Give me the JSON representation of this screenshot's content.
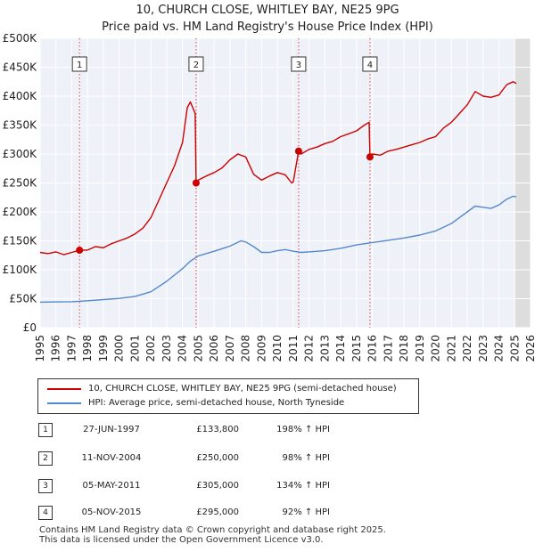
{
  "chart_data": {
    "type": "line",
    "title": "10, CHURCH CLOSE, WHITLEY BAY, NE25 9PG",
    "subtitle": "Price paid vs. HM Land Registry's House Price Index (HPI)",
    "xlim": [
      1995,
      2026
    ],
    "ylim": [
      0,
      500000
    ],
    "x_ticks": [
      1995,
      1996,
      1997,
      1998,
      1999,
      2000,
      2001,
      2002,
      2003,
      2004,
      2005,
      2006,
      2007,
      2008,
      2009,
      2010,
      2011,
      2012,
      2013,
      2014,
      2015,
      2016,
      2017,
      2018,
      2019,
      2020,
      2021,
      2022,
      2023,
      2024,
      2025,
      2026
    ],
    "y_ticks": [
      {
        "value": 0,
        "label": "£0"
      },
      {
        "value": 50000,
        "label": "£50K"
      },
      {
        "value": 100000,
        "label": "£100K"
      },
      {
        "value": 150000,
        "label": "£150K"
      },
      {
        "value": 200000,
        "label": "£200K"
      },
      {
        "value": 250000,
        "label": "£250K"
      },
      {
        "value": 300000,
        "label": "£300K"
      },
      {
        "value": 350000,
        "label": "£350K"
      },
      {
        "value": 400000,
        "label": "£400K"
      },
      {
        "value": 450000,
        "label": "£450K"
      },
      {
        "value": 500000,
        "label": "£500K"
      }
    ],
    "forecast_from": 2025.0,
    "series": [
      {
        "name": "10, CHURCH CLOSE, WHITLEY BAY, NE25 9PG (semi-detached house)",
        "color": "#cc0000",
        "points": [
          [
            1995.0,
            130000
          ],
          [
            1995.5,
            128000
          ],
          [
            1996.0,
            131000
          ],
          [
            1996.5,
            126000
          ],
          [
            1997.0,
            130000
          ],
          [
            1997.49,
            133800
          ],
          [
            1998.0,
            134000
          ],
          [
            1998.5,
            140000
          ],
          [
            1999.0,
            138000
          ],
          [
            1999.5,
            145000
          ],
          [
            2000.0,
            150000
          ],
          [
            2000.5,
            155000
          ],
          [
            2001.0,
            162000
          ],
          [
            2001.5,
            172000
          ],
          [
            2002.0,
            190000
          ],
          [
            2002.5,
            220000
          ],
          [
            2003.0,
            250000
          ],
          [
            2003.5,
            280000
          ],
          [
            2004.0,
            320000
          ],
          [
            2004.3,
            380000
          ],
          [
            2004.5,
            390000
          ],
          [
            2004.8,
            370000
          ],
          [
            2004.86,
            250000
          ],
          [
            2005.0,
            255000
          ],
          [
            2005.5,
            262000
          ],
          [
            2006.0,
            268000
          ],
          [
            2006.5,
            276000
          ],
          [
            2007.0,
            290000
          ],
          [
            2007.5,
            300000
          ],
          [
            2008.0,
            295000
          ],
          [
            2008.5,
            265000
          ],
          [
            2009.0,
            255000
          ],
          [
            2009.5,
            262000
          ],
          [
            2010.0,
            268000
          ],
          [
            2010.5,
            264000
          ],
          [
            2010.9,
            250000
          ],
          [
            2011.0,
            252000
          ],
          [
            2011.34,
            305000
          ],
          [
            2011.5,
            300000
          ],
          [
            2012.0,
            308000
          ],
          [
            2012.5,
            312000
          ],
          [
            2013.0,
            318000
          ],
          [
            2013.5,
            322000
          ],
          [
            2014.0,
            330000
          ],
          [
            2014.5,
            335000
          ],
          [
            2015.0,
            340000
          ],
          [
            2015.5,
            350000
          ],
          [
            2015.8,
            355000
          ],
          [
            2015.85,
            295000
          ],
          [
            2016.0,
            300000
          ],
          [
            2016.5,
            298000
          ],
          [
            2017.0,
            305000
          ],
          [
            2017.5,
            308000
          ],
          [
            2018.0,
            312000
          ],
          [
            2018.5,
            316000
          ],
          [
            2019.0,
            320000
          ],
          [
            2019.5,
            326000
          ],
          [
            2020.0,
            330000
          ],
          [
            2020.5,
            345000
          ],
          [
            2021.0,
            355000
          ],
          [
            2021.5,
            370000
          ],
          [
            2022.0,
            385000
          ],
          [
            2022.5,
            408000
          ],
          [
            2023.0,
            400000
          ],
          [
            2023.5,
            398000
          ],
          [
            2024.0,
            402000
          ],
          [
            2024.5,
            420000
          ],
          [
            2024.9,
            425000
          ],
          [
            2025.1,
            422000
          ]
        ]
      },
      {
        "name": "HPI: Average price, semi-detached house, North Tyneside",
        "color": "#5588cc",
        "points": [
          [
            1995.0,
            44000
          ],
          [
            1996.0,
            44500
          ],
          [
            1997.0,
            44800
          ],
          [
            1998.0,
            46500
          ],
          [
            1999.0,
            48500
          ],
          [
            2000.0,
            50500
          ],
          [
            2001.0,
            54000
          ],
          [
            2002.0,
            62000
          ],
          [
            2003.0,
            80000
          ],
          [
            2004.0,
            102000
          ],
          [
            2004.5,
            115000
          ],
          [
            2005.0,
            124000
          ],
          [
            2006.0,
            132000
          ],
          [
            2007.0,
            141000
          ],
          [
            2007.7,
            150000
          ],
          [
            2008.0,
            148000
          ],
          [
            2008.5,
            140000
          ],
          [
            2009.0,
            130000
          ],
          [
            2009.5,
            130000
          ],
          [
            2010.0,
            133000
          ],
          [
            2010.5,
            135000
          ],
          [
            2011.0,
            132000
          ],
          [
            2011.5,
            130000
          ],
          [
            2012.0,
            131000
          ],
          [
            2013.0,
            133000
          ],
          [
            2014.0,
            137000
          ],
          [
            2015.0,
            143000
          ],
          [
            2016.0,
            147000
          ],
          [
            2017.0,
            151000
          ],
          [
            2018.0,
            155000
          ],
          [
            2019.0,
            160000
          ],
          [
            2020.0,
            167000
          ],
          [
            2021.0,
            180000
          ],
          [
            2022.0,
            200000
          ],
          [
            2022.5,
            210000
          ],
          [
            2023.0,
            208000
          ],
          [
            2023.5,
            206000
          ],
          [
            2024.0,
            212000
          ],
          [
            2024.5,
            222000
          ],
          [
            2024.9,
            227000
          ],
          [
            2025.1,
            226000
          ]
        ]
      }
    ],
    "sales": [
      {
        "num": "1",
        "x": 1997.49,
        "price": 133800
      },
      {
        "num": "2",
        "x": 2004.86,
        "price": 250000
      },
      {
        "num": "3",
        "x": 2011.34,
        "price": 305000
      },
      {
        "num": "4",
        "x": 2015.85,
        "price": 295000
      }
    ]
  },
  "legend": {
    "property_label": "10, CHURCH CLOSE, WHITLEY BAY, NE25 9PG (semi-detached house)",
    "hpi_label": "HPI: Average price, semi-detached house, North Tyneside"
  },
  "transactions": [
    {
      "num": "1",
      "date": "27-JUN-1997",
      "price": "£133,800",
      "hpi": "198% ↑ HPI"
    },
    {
      "num": "2",
      "date": "11-NOV-2004",
      "price": "£250,000",
      "hpi": "98% ↑ HPI"
    },
    {
      "num": "3",
      "date": "05-MAY-2011",
      "price": "£305,000",
      "hpi": "134% ↑ HPI"
    },
    {
      "num": "4",
      "date": "05-NOV-2015",
      "price": "£295,000",
      "hpi": "92% ↑ HPI"
    }
  ],
  "footer": {
    "line1": "Contains HM Land Registry data © Crown copyright and database right 2025.",
    "line2": "This data is licensed under the Open Government Licence v3.0."
  }
}
